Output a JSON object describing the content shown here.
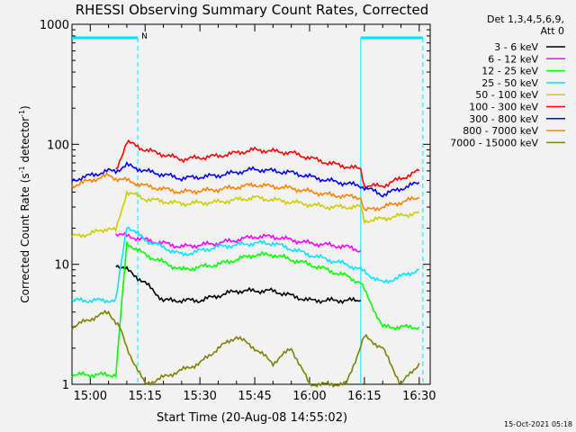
{
  "chart_data": {
    "type": "line",
    "title": "RHESSI Observing Summary Count Rates, Corrected",
    "xlabel": "Start Time (20-Aug-08 14:55:02)",
    "ylabel_main": "Corrected Count Rate (s",
    "ylabel_sup1": "-1",
    "ylabel_mid": " detector",
    "ylabel_sup2": "-1",
    "ylabel_end": ")",
    "yscale": "log",
    "ylim": [
      1,
      1000
    ],
    "xlim": [
      "14:55",
      "16:33"
    ],
    "x_ticks": [
      "15:00",
      "15:15",
      "15:30",
      "15:45",
      "16:00",
      "16:15",
      "16:30"
    ],
    "y_ticks": [
      "1",
      "10",
      "100",
      "1000"
    ],
    "legend_header": [
      "Det 1,3,4,5,6,9,",
      "Att 0"
    ],
    "legend_position": "right",
    "timestamp": "15-Oct-2021 05:18",
    "annotations": {
      "night_bar_color": "#00e5ff",
      "night_marker_label": "N",
      "night_intervals": [
        [
          "14:55",
          "15:13"
        ],
        [
          "16:14",
          "16:31"
        ]
      ],
      "attenuator_transitions": [
        "15:13",
        "16:14"
      ]
    },
    "series": [
      {
        "name": "3 - 6 keV",
        "color": "#000000",
        "x": [
          "15:07",
          "15:10",
          "15:15",
          "15:20",
          "15:30",
          "15:40",
          "15:50",
          "16:00",
          "16:05",
          "16:10",
          "16:14"
        ],
        "values": [
          10,
          9,
          7,
          5,
          5,
          6,
          6,
          5,
          5,
          5,
          5
        ]
      },
      {
        "name": "6 - 12 keV",
        "color": "#ff00ff",
        "x": [
          "15:07",
          "15:15",
          "15:25",
          "15:35",
          "15:45",
          "15:50",
          "16:00",
          "16:10",
          "16:14"
        ],
        "values": [
          18,
          16,
          14,
          15,
          17,
          17,
          15,
          14,
          13
        ]
      },
      {
        "name": "12 - 25 keV",
        "color": "#00ff00",
        "x": [
          "14:55",
          "15:05",
          "15:07",
          "15:10",
          "15:15",
          "15:25",
          "15:35",
          "15:45",
          "15:50",
          "16:00",
          "16:10",
          "16:14",
          "16:20",
          "16:30"
        ],
        "values": [
          1.2,
          1.2,
          1.2,
          15,
          12,
          9,
          10,
          12,
          12,
          10,
          8,
          7,
          3,
          3
        ]
      },
      {
        "name": "25 - 50 keV",
        "color": "#00e5ff",
        "x": [
          "14:55",
          "15:05",
          "15:07",
          "15:10",
          "15:15",
          "15:25",
          "15:35",
          "15:45",
          "15:50",
          "16:00",
          "16:10",
          "16:14",
          "16:20",
          "16:30"
        ],
        "values": [
          5,
          5,
          5,
          21,
          16,
          12,
          14,
          15,
          15,
          12,
          10,
          9,
          7,
          9
        ]
      },
      {
        "name": "50 - 100 keV",
        "color": "#cccc00",
        "x": [
          "14:55",
          "15:00",
          "15:05",
          "15:07",
          "15:10",
          "15:15",
          "15:25",
          "15:35",
          "15:45",
          "15:55",
          "16:05",
          "16:14",
          "16:15",
          "16:20",
          "16:30"
        ],
        "values": [
          17,
          18,
          20,
          19,
          40,
          35,
          32,
          33,
          36,
          33,
          30,
          30,
          23,
          24,
          27
        ]
      },
      {
        "name": "100 - 300 keV",
        "color": "#ff0000",
        "x": [
          "15:07",
          "15:10",
          "15:15",
          "15:25",
          "15:35",
          "15:45",
          "15:55",
          "16:05",
          "16:14",
          "16:15",
          "16:20",
          "16:30"
        ],
        "values": [
          60,
          105,
          90,
          75,
          80,
          90,
          85,
          70,
          62,
          45,
          45,
          60
        ]
      },
      {
        "name": "300 - 800 keV",
        "color": "#0000ff",
        "x": [
          "14:55",
          "15:00",
          "15:05",
          "15:07",
          "15:10",
          "15:15",
          "15:25",
          "15:35",
          "15:45",
          "15:55",
          "16:05",
          "16:14",
          "16:20",
          "16:30"
        ],
        "values": [
          50,
          55,
          60,
          60,
          67,
          60,
          52,
          55,
          62,
          58,
          50,
          45,
          38,
          48
        ]
      },
      {
        "name": "800 - 7000 keV",
        "color": "#ff8000",
        "x": [
          "14:55",
          "15:00",
          "15:05",
          "15:07",
          "15:10",
          "15:15",
          "15:25",
          "15:35",
          "15:45",
          "15:55",
          "16:05",
          "16:14",
          "16:15",
          "16:20",
          "16:30"
        ],
        "values": [
          45,
          50,
          55,
          52,
          50,
          45,
          40,
          42,
          46,
          43,
          38,
          36,
          28,
          30,
          36
        ]
      },
      {
        "name": "7000 - 15000 keV",
        "color": "#808000",
        "x": [
          "14:55",
          "15:00",
          "15:05",
          "15:08",
          "15:10",
          "15:15",
          "15:30",
          "15:35",
          "15:40",
          "15:45",
          "15:50",
          "15:55",
          "16:00",
          "16:05",
          "16:10",
          "16:15",
          "16:20",
          "16:25",
          "16:30"
        ],
        "values": [
          3,
          3.5,
          4,
          3,
          2,
          1,
          1.5,
          2,
          2.5,
          2,
          1.5,
          2,
          1,
          1,
          1,
          2.5,
          2,
          1,
          1.5
        ]
      }
    ]
  }
}
